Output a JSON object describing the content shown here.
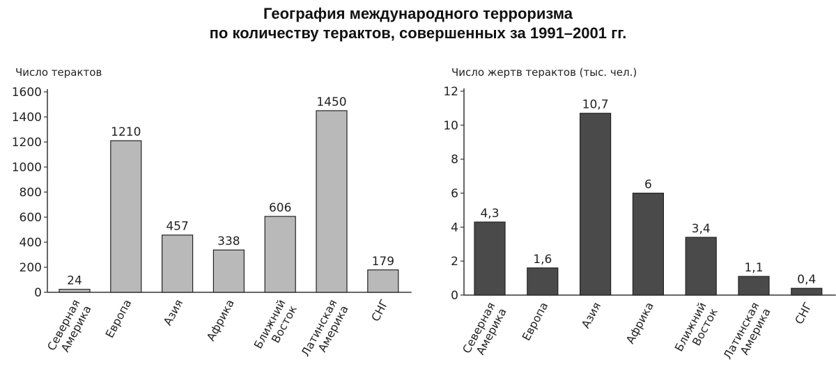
{
  "title_line1": "География международного терроризма",
  "title_line2": "по количеству терактов, совершенных за 1991–2001 гг.",
  "chart_data": [
    {
      "type": "bar",
      "ylabel": "Число терактов",
      "ylim": [
        0,
        1600
      ],
      "yticks": [
        "0",
        "200",
        "400",
        "600",
        "800",
        "1000",
        "1200",
        "1400",
        "1600"
      ],
      "categories": [
        [
          "Северная",
          "Америка"
        ],
        [
          "Европа"
        ],
        [
          "Азия"
        ],
        [
          "Африка"
        ],
        [
          "Ближний",
          "Восток"
        ],
        [
          "Латинская",
          "Америка"
        ],
        [
          "СНГ"
        ]
      ],
      "values": [
        24,
        1210,
        457,
        338,
        606,
        1450,
        179
      ],
      "labels": [
        "24",
        "1210",
        "457",
        "338",
        "606",
        "1450",
        "179"
      ],
      "bar_color": "#b9b9b9"
    },
    {
      "type": "bar",
      "ylabel": "Число жертв терактов (тыс. чел.)",
      "ylim": [
        0,
        12
      ],
      "yticks": [
        "0",
        "2",
        "4",
        "6",
        "8",
        "10",
        "12"
      ],
      "categories": [
        [
          "Северная",
          "Америка"
        ],
        [
          "Европа"
        ],
        [
          "Азия"
        ],
        [
          "Африка"
        ],
        [
          "Ближний",
          "Восток"
        ],
        [
          "Латинская",
          "Америка"
        ],
        [
          "СНГ"
        ]
      ],
      "values": [
        4.3,
        1.6,
        10.7,
        6,
        3.4,
        1.1,
        0.4
      ],
      "labels": [
        "4,3",
        "1,6",
        "10,7",
        "6",
        "3,4",
        "1,1",
        "0,4"
      ],
      "bar_color": "#4a4a4a"
    }
  ]
}
